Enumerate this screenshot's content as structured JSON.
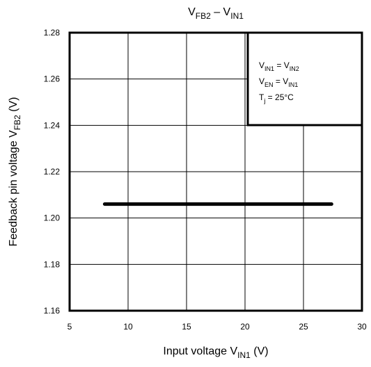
{
  "chart_data": {
    "type": "line",
    "title": [
      "V",
      "FB2",
      " – V",
      "IN1"
    ],
    "x_label": [
      "Input voltage  V",
      "IN1",
      "  (V)"
    ],
    "y_label": [
      "Feedback pin voltage  V",
      "FB2",
      "  (V)"
    ],
    "annotations": [
      [
        "V",
        "IN1",
        " = V",
        "IN2"
      ],
      [
        "V",
        "EN",
        " = V",
        "IN1"
      ],
      [
        "T",
        "j",
        " = 25°C"
      ]
    ],
    "x": [
      8,
      27.4
    ],
    "series": [
      {
        "color": "#000000",
        "values": [
          1.206,
          1.206
        ]
      }
    ],
    "xlim": [
      5,
      30
    ],
    "xticks": [
      5,
      10,
      15,
      20,
      25,
      30
    ],
    "ylim": [
      1.16,
      1.28
    ],
    "yticks": [
      1.16,
      1.18,
      {
        "value": 1.2,
        "label": "1.20"
      },
      1.22,
      1.24,
      1.26,
      1.28
    ],
    "grid": true
  }
}
